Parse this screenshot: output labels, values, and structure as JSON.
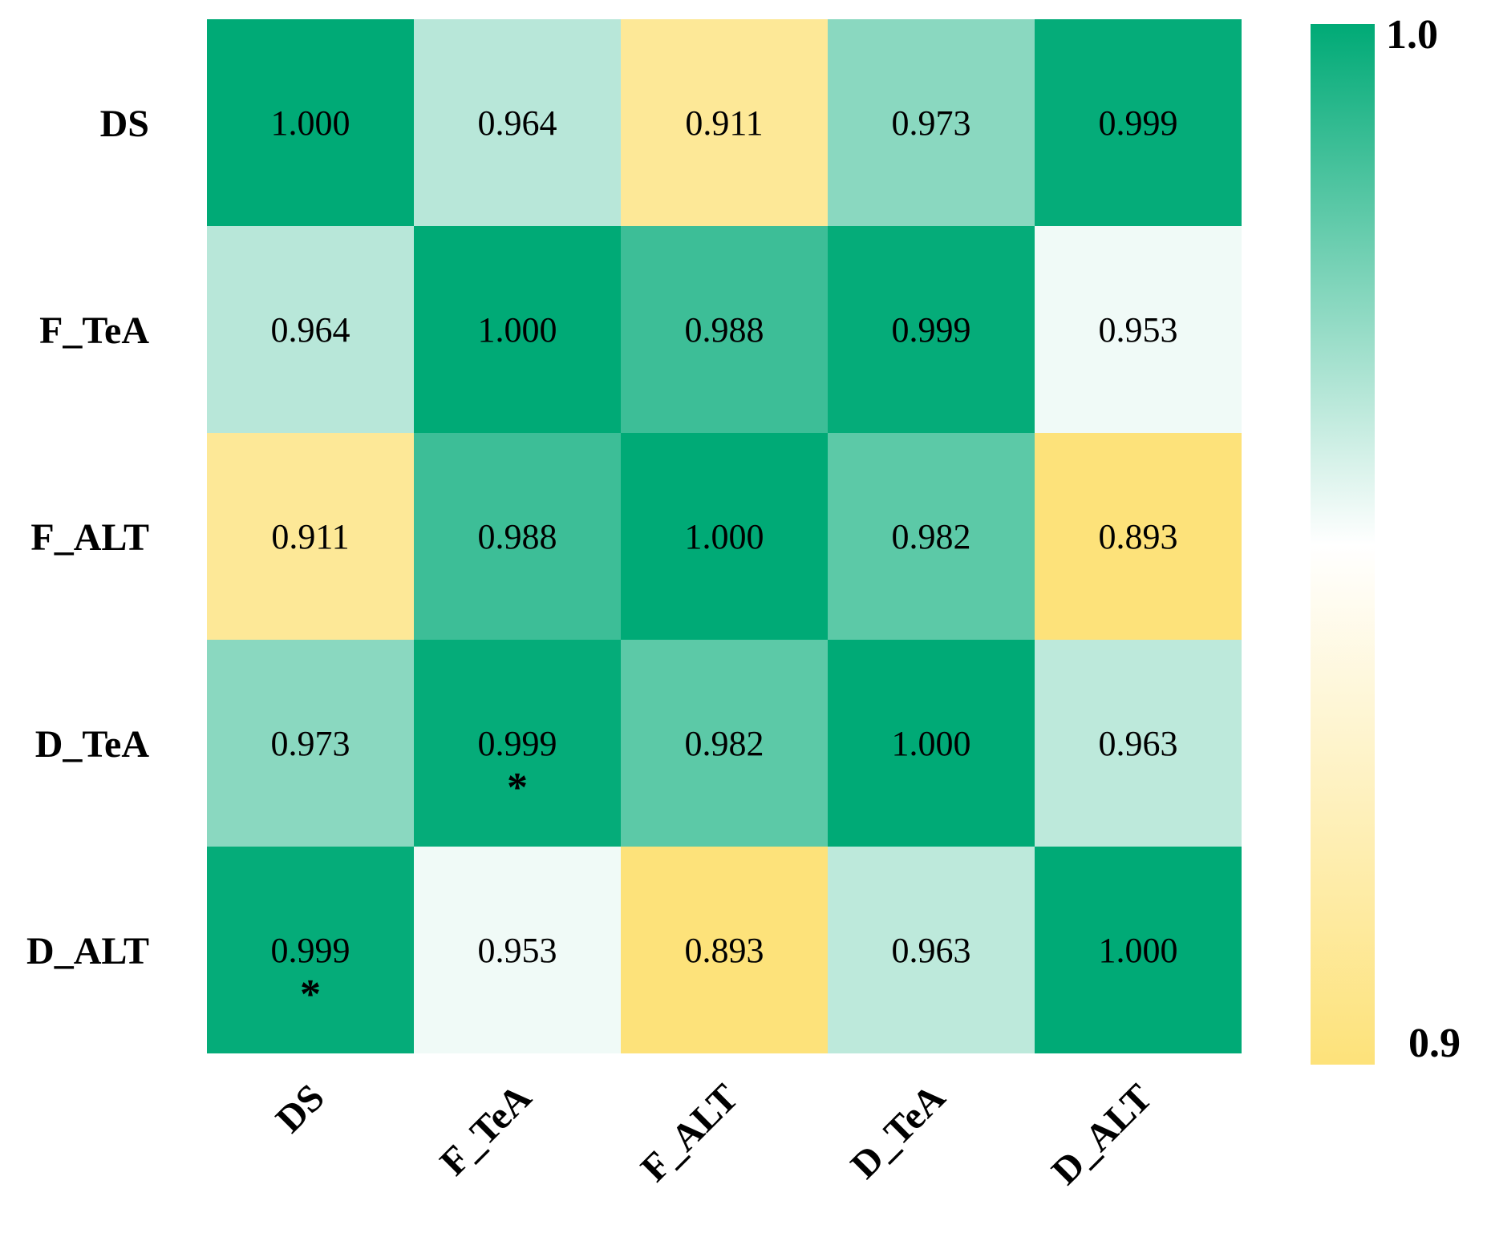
{
  "chart_data": {
    "type": "heatmap",
    "title": "",
    "rows": [
      "DS",
      "F_TeA",
      "F_ALT",
      "D_TeA",
      "D_ALT"
    ],
    "columns": [
      "DS",
      "F_TeA",
      "F_ALT",
      "D_TeA",
      "D_ALT"
    ],
    "values": [
      [
        1.0,
        0.964,
        0.911,
        0.973,
        0.999
      ],
      [
        0.964,
        1.0,
        0.988,
        0.999,
        0.953
      ],
      [
        0.911,
        0.988,
        1.0,
        0.982,
        0.893
      ],
      [
        0.973,
        0.999,
        0.982,
        1.0,
        0.963
      ],
      [
        0.999,
        0.953,
        0.893,
        0.963,
        1.0
      ]
    ],
    "value_labels": [
      [
        "1.000",
        "0.964",
        "0.911",
        "0.973",
        "0.999"
      ],
      [
        "0.964",
        "1.000",
        "0.988",
        "0.999",
        "0.953"
      ],
      [
        "0.911",
        "0.988",
        "1.000",
        "0.982",
        "0.893"
      ],
      [
        "0.973",
        "0.999",
        "0.982",
        "1.000",
        "0.963"
      ],
      [
        "0.999",
        "0.953",
        "0.893",
        "0.963",
        "1.000"
      ]
    ],
    "significance_marks": [
      {
        "row": 3,
        "col": 1,
        "mark": "*"
      },
      {
        "row": 4,
        "col": 0,
        "mark": "*"
      }
    ],
    "colorbar": {
      "min": 0.9,
      "max": 1.0,
      "min_label": "0.9",
      "max_label": "1.0",
      "placement": "right",
      "colors": {
        "low": "#fde27a",
        "mid": "#ffffff",
        "high": "#00aa76"
      }
    },
    "col_label_rotation": "45-degree diagonal"
  }
}
